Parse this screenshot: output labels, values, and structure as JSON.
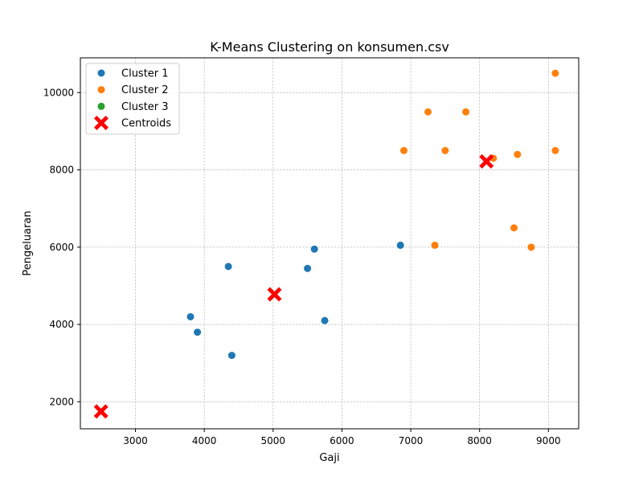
{
  "chart_data": {
    "type": "scatter",
    "title": "K-Means Clustering on konsumen.csv",
    "xlabel": "Gaji",
    "ylabel": "Pengeluaran",
    "xlim": [
      2200,
      9440
    ],
    "ylim": [
      1300,
      10900
    ],
    "xticks": [
      3000,
      4000,
      5000,
      6000,
      7000,
      8000,
      9000
    ],
    "yticks": [
      2000,
      4000,
      6000,
      8000,
      10000
    ],
    "grid": true,
    "legend_position": "top-left",
    "series": [
      {
        "name": "Cluster 1",
        "color": "#1f77b4",
        "marker": "circle",
        "points": [
          [
            3800,
            4200
          ],
          [
            3900,
            3800
          ],
          [
            4350,
            5500
          ],
          [
            4400,
            3200
          ],
          [
            5500,
            5450
          ],
          [
            5600,
            5950
          ],
          [
            5750,
            4100
          ],
          [
            6850,
            6050
          ]
        ]
      },
      {
        "name": "Cluster 2",
        "color": "#ff7f0e",
        "marker": "circle",
        "points": [
          [
            6900,
            8500
          ],
          [
            7250,
            9500
          ],
          [
            7350,
            6050
          ],
          [
            7500,
            8500
          ],
          [
            7800,
            9500
          ],
          [
            8200,
            8300
          ],
          [
            8500,
            6500
          ],
          [
            8550,
            8400
          ],
          [
            8750,
            6000
          ],
          [
            9100,
            10500
          ],
          [
            9100,
            8500
          ]
        ]
      },
      {
        "name": "Cluster 3",
        "color": "#2ca02c",
        "marker": "circle",
        "points": []
      },
      {
        "name": "Centroids",
        "color": "#ff0000",
        "marker": "X",
        "points": [
          [
            5020,
            4780
          ],
          [
            8100,
            8220
          ],
          [
            2500,
            1750
          ]
        ]
      }
    ]
  }
}
